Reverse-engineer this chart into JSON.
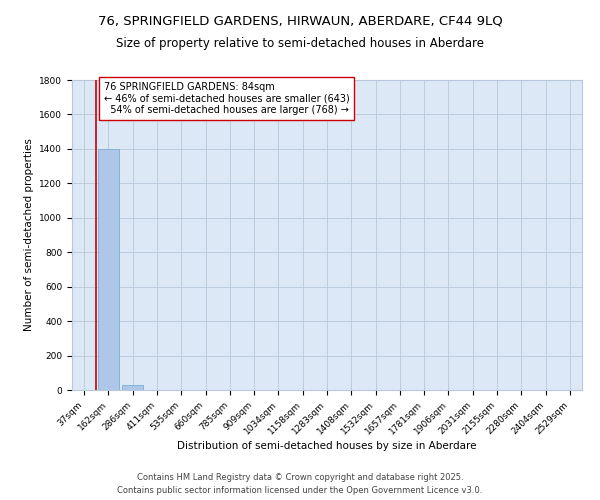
{
  "title_line1": "76, SPRINGFIELD GARDENS, HIRWAUN, ABERDARE, CF44 9LQ",
  "title_line2": "Size of property relative to semi-detached houses in Aberdare",
  "xlabel": "Distribution of semi-detached houses by size in Aberdare",
  "ylabel": "Number of semi-detached properties",
  "categories": [
    "37sqm",
    "162sqm",
    "286sqm",
    "411sqm",
    "535sqm",
    "660sqm",
    "785sqm",
    "909sqm",
    "1034sqm",
    "1158sqm",
    "1283sqm",
    "1408sqm",
    "1532sqm",
    "1657sqm",
    "1781sqm",
    "1906sqm",
    "2031sqm",
    "2155sqm",
    "2280sqm",
    "2404sqm",
    "2529sqm"
  ],
  "values": [
    0,
    1400,
    30,
    0,
    0,
    0,
    0,
    0,
    0,
    0,
    0,
    0,
    0,
    0,
    0,
    0,
    0,
    0,
    0,
    0,
    0
  ],
  "bar_color": "#aec6e8",
  "bar_edge_color": "#7aafd4",
  "vline_x": 0.5,
  "vline_color": "#cc0000",
  "annotation_text": "76 SPRINGFIELD GARDENS: 84sqm\n← 46% of semi-detached houses are smaller (643)\n  54% of semi-detached houses are larger (768) →",
  "annotation_box_color": "#ffffff",
  "annotation_box_edge": "#cc0000",
  "ylim": [
    0,
    1800
  ],
  "yticks": [
    0,
    200,
    400,
    600,
    800,
    1000,
    1200,
    1400,
    1600,
    1800
  ],
  "background_color": "#dce8f5",
  "grid_color": "#b8c8dc",
  "footer_text": "Contains HM Land Registry data © Crown copyright and database right 2025.\nContains public sector information licensed under the Open Government Licence v3.0.",
  "title_fontsize": 9.5,
  "subtitle_fontsize": 8.5,
  "axis_label_fontsize": 7.5,
  "tick_fontsize": 6.5,
  "annotation_fontsize": 7,
  "footer_fontsize": 6
}
